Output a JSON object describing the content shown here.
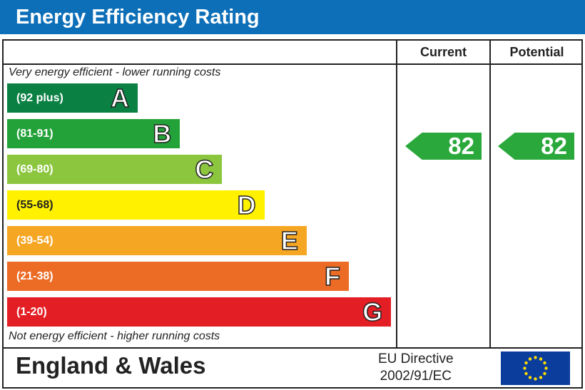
{
  "title": "Energy Efficiency Rating",
  "columns": {
    "current": "Current",
    "potential": "Potential"
  },
  "top_note": "Very energy efficient - lower running costs",
  "bottom_note": "Not energy efficient - higher running costs",
  "footer": {
    "region": "England & Wales",
    "directive_line1": "EU Directive",
    "directive_line2": "2002/91/EC"
  },
  "chart_data": {
    "type": "bar",
    "categories": [
      "A",
      "B",
      "C",
      "D",
      "E",
      "F",
      "G"
    ],
    "ranges": [
      "(92 plus)",
      "(81-91)",
      "(69-80)",
      "(55-68)",
      "(39-54)",
      "(21-38)",
      "(1-20)"
    ],
    "colors": [
      "#0a8043",
      "#24a23a",
      "#8cc63f",
      "#fff100",
      "#f5a623",
      "#ec6b25",
      "#e31e24"
    ],
    "current": {
      "value": 82,
      "band": "B",
      "color": "#2aa83b"
    },
    "potential": {
      "value": 82,
      "band": "B",
      "color": "#2aa83b"
    }
  }
}
